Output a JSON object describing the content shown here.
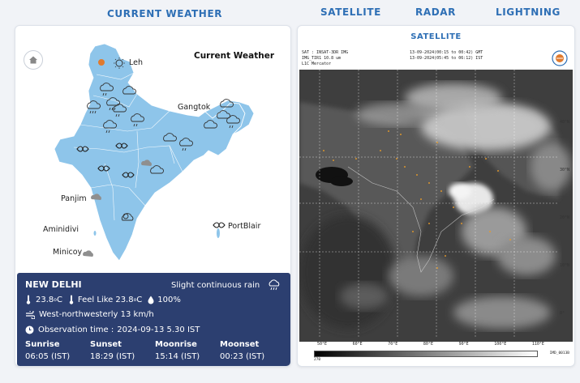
{
  "tabs": {
    "current_weather": "CURRENT WEATHER",
    "satellite": "SATELLITE",
    "radar": "RADAR",
    "lightning": "LIGHTNING"
  },
  "map": {
    "title": "Current Weather",
    "cities": {
      "leh": "Leh",
      "gangtok": "Gangtok",
      "panjim": "Panjim",
      "aminidivi": "Aminidivi",
      "minicoy": "Minicoy",
      "portblair": "PortBlair"
    }
  },
  "info": {
    "city": "NEW DELHI",
    "condition": "Slight continuous rain",
    "temperature": "23.8",
    "feels_like_label": "Feel Like",
    "feels_like": "23.8",
    "temp_unit": "C",
    "humidity": "100%",
    "wind": "West-northwesterly 13 km/h",
    "observation_label": "Observation time :",
    "observation_time": "2024-09-13 5.30 IST",
    "sunrise_label": "Sunrise",
    "sunrise": "06:05 (IST)",
    "sunset_label": "Sunset",
    "sunset": "18:29 (IST)",
    "moonrise_label": "Moonrise",
    "moonrise": "15:14 (IST)",
    "moonset_label": "Moonset",
    "moonset": "00:23 (IST)"
  },
  "satellite": {
    "title": "SATELLITE",
    "header_line1": "SAT : INSAT-3DR IMG",
    "header_line2": "IMG_TIR1 10.8 um",
    "header_line3": "L1C Mercator",
    "time_gmt": "13-09-2024(00:15 to 00:42) GMT",
    "time_ist": "13-09-2024(05:45 to 06:12) IST",
    "lat_labels": [
      "40°N",
      "30°N",
      "20°N",
      "10°N",
      "0°"
    ],
    "lon_labels": [
      "50°E",
      "60°E",
      "70°E",
      "80°E",
      "90°E",
      "100°E",
      "110°E"
    ],
    "scale_min": "270",
    "scale_max": "IMD_0013B"
  },
  "colors": {
    "accent": "#2e6fb5",
    "map_fill": "#8ec5ea",
    "panel_bg": "#2c3f70"
  }
}
